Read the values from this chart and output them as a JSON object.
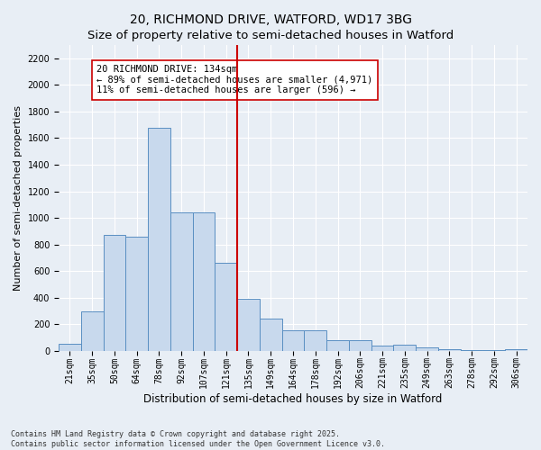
{
  "title1": "20, RICHMOND DRIVE, WATFORD, WD17 3BG",
  "title2": "Size of property relative to semi-detached houses in Watford",
  "xlabel": "Distribution of semi-detached houses by size in Watford",
  "ylabel": "Number of semi-detached properties",
  "categories": [
    "21sqm",
    "35sqm",
    "50sqm",
    "64sqm",
    "78sqm",
    "92sqm",
    "107sqm",
    "121sqm",
    "135sqm",
    "149sqm",
    "164sqm",
    "178sqm",
    "192sqm",
    "206sqm",
    "221sqm",
    "235sqm",
    "249sqm",
    "263sqm",
    "278sqm",
    "292sqm",
    "306sqm"
  ],
  "values": [
    55,
    300,
    870,
    860,
    1680,
    1040,
    1040,
    660,
    390,
    240,
    155,
    155,
    80,
    80,
    40,
    50,
    25,
    15,
    5,
    5,
    15
  ],
  "bar_color": "#c8d9ed",
  "bar_edge_color": "#5a8fc2",
  "vline_color": "#cc0000",
  "annotation_text": "20 RICHMOND DRIVE: 134sqm\n← 89% of semi-detached houses are smaller (4,971)\n11% of semi-detached houses are larger (596) →",
  "annotation_box_color": "#ffffff",
  "annotation_box_edge": "#cc0000",
  "footnote": "Contains HM Land Registry data © Crown copyright and database right 2025.\nContains public sector information licensed under the Open Government Licence v3.0.",
  "ylim": [
    0,
    2300
  ],
  "yticks": [
    0,
    200,
    400,
    600,
    800,
    1000,
    1200,
    1400,
    1600,
    1800,
    2000,
    2200
  ],
  "background_color": "#e8eef5",
  "title_fontsize": 10,
  "tick_fontsize": 7,
  "ylabel_fontsize": 8,
  "xlabel_fontsize": 8.5
}
